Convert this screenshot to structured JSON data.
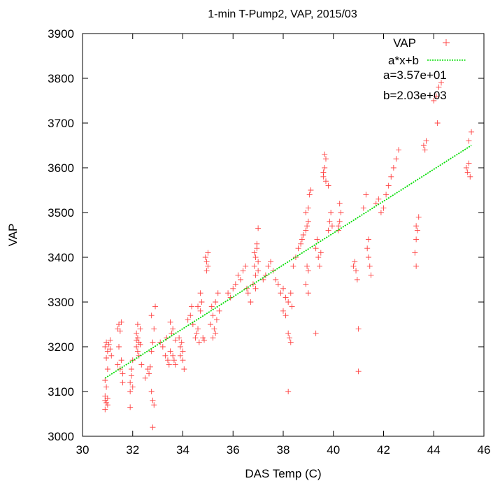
{
  "chart_data": {
    "type": "scatter",
    "title": "1-min T-Pump2, VAP, 2015/03",
    "xlabel": "DAS Temp (C)",
    "ylabel": "VAP",
    "xlim": [
      30,
      46
    ],
    "ylim": [
      3000,
      3900
    ],
    "xticks": [
      30,
      32,
      34,
      36,
      38,
      40,
      42,
      44,
      46
    ],
    "yticks": [
      3000,
      3100,
      3200,
      3300,
      3400,
      3500,
      3600,
      3700,
      3800,
      3900
    ],
    "grid": false,
    "legend_position": "top-right",
    "colors": {
      "scatter": "#ff0000",
      "fit": "#00dd00"
    },
    "series": [
      {
        "name": "VAP",
        "kind": "scatter",
        "points": [
          [
            30.9,
            3080
          ],
          [
            30.9,
            3090
          ],
          [
            30.95,
            3075
          ],
          [
            31.0,
            3085
          ],
          [
            30.9,
            3060
          ],
          [
            31.0,
            3070
          ],
          [
            30.9,
            3200
          ],
          [
            30.95,
            3210
          ],
          [
            31.0,
            3190
          ],
          [
            31.05,
            3205
          ],
          [
            31.1,
            3195
          ],
          [
            30.95,
            3175
          ],
          [
            31.0,
            3150
          ],
          [
            31.1,
            3215
          ],
          [
            31.15,
            3180
          ],
          [
            30.9,
            3125
          ],
          [
            30.95,
            3110
          ],
          [
            31.4,
            3240
          ],
          [
            31.45,
            3250
          ],
          [
            31.5,
            3235
          ],
          [
            31.55,
            3255
          ],
          [
            31.4,
            3160
          ],
          [
            31.5,
            3150
          ],
          [
            31.55,
            3170
          ],
          [
            31.6,
            3140
          ],
          [
            31.45,
            3200
          ],
          [
            31.6,
            3120
          ],
          [
            31.9,
            3120
          ],
          [
            31.95,
            3135
          ],
          [
            32.0,
            3110
          ],
          [
            31.9,
            3100
          ],
          [
            31.95,
            3150
          ],
          [
            32.0,
            3170
          ],
          [
            31.9,
            3065
          ],
          [
            32.15,
            3230
          ],
          [
            32.2,
            3220
          ],
          [
            32.25,
            3210
          ],
          [
            32.15,
            3200
          ],
          [
            32.2,
            3190
          ],
          [
            32.25,
            3180
          ],
          [
            32.3,
            3240
          ],
          [
            32.2,
            3250
          ],
          [
            32.15,
            3215
          ],
          [
            32.3,
            3205
          ],
          [
            32.35,
            3160
          ],
          [
            32.5,
            3130
          ],
          [
            32.6,
            3150
          ],
          [
            32.65,
            3140
          ],
          [
            32.7,
            3155
          ],
          [
            32.75,
            3100
          ],
          [
            32.8,
            3080
          ],
          [
            32.85,
            3070
          ],
          [
            32.8,
            3210
          ],
          [
            32.75,
            3190
          ],
          [
            32.8,
            3020
          ],
          [
            32.85,
            3240
          ],
          [
            32.9,
            3290
          ],
          [
            32.75,
            3270
          ],
          [
            33.1,
            3210
          ],
          [
            33.2,
            3200
          ],
          [
            33.3,
            3180
          ],
          [
            33.35,
            3220
          ],
          [
            33.4,
            3170
          ],
          [
            33.45,
            3160
          ],
          [
            33.5,
            3190
          ],
          [
            33.55,
            3230
          ],
          [
            33.6,
            3180
          ],
          [
            33.65,
            3170
          ],
          [
            33.7,
            3160
          ],
          [
            33.6,
            3240
          ],
          [
            33.7,
            3215
          ],
          [
            33.5,
            3255
          ],
          [
            33.9,
            3200
          ],
          [
            33.95,
            3210
          ],
          [
            34.0,
            3190
          ],
          [
            33.9,
            3180
          ],
          [
            34.0,
            3170
          ],
          [
            33.85,
            3220
          ],
          [
            34.05,
            3150
          ],
          [
            34.2,
            3260
          ],
          [
            34.3,
            3270
          ],
          [
            34.35,
            3290
          ],
          [
            34.4,
            3250
          ],
          [
            34.5,
            3220
          ],
          [
            34.55,
            3230
          ],
          [
            34.6,
            3240
          ],
          [
            34.65,
            3210
          ],
          [
            34.7,
            3280
          ],
          [
            34.75,
            3300
          ],
          [
            34.8,
            3220
          ],
          [
            34.85,
            3215
          ],
          [
            34.6,
            3290
          ],
          [
            34.7,
            3320
          ],
          [
            34.9,
            3400
          ],
          [
            34.95,
            3390
          ],
          [
            35.0,
            3380
          ],
          [
            34.95,
            3370
          ],
          [
            35.0,
            3410
          ],
          [
            35.1,
            3250
          ],
          [
            35.2,
            3270
          ],
          [
            35.25,
            3240
          ],
          [
            35.3,
            3230
          ],
          [
            35.2,
            3220
          ],
          [
            35.35,
            3260
          ],
          [
            35.15,
            3290
          ],
          [
            35.3,
            3300
          ],
          [
            35.4,
            3320
          ],
          [
            35.45,
            3280
          ],
          [
            35.8,
            3320
          ],
          [
            35.9,
            3310
          ],
          [
            36.0,
            3330
          ],
          [
            36.1,
            3340
          ],
          [
            36.2,
            3360
          ],
          [
            36.3,
            3350
          ],
          [
            36.4,
            3370
          ],
          [
            36.5,
            3380
          ],
          [
            36.55,
            3330
          ],
          [
            36.6,
            3320
          ],
          [
            36.7,
            3300
          ],
          [
            36.8,
            3340
          ],
          [
            36.85,
            3380
          ],
          [
            36.9,
            3400
          ],
          [
            36.95,
            3420
          ],
          [
            37.0,
            3390
          ],
          [
            36.9,
            3360
          ],
          [
            37.0,
            3370
          ],
          [
            36.85,
            3410
          ],
          [
            36.95,
            3430
          ],
          [
            37.0,
            3465
          ],
          [
            36.9,
            3330
          ],
          [
            37.2,
            3350
          ],
          [
            37.3,
            3360
          ],
          [
            37.4,
            3380
          ],
          [
            37.5,
            3390
          ],
          [
            37.6,
            3370
          ],
          [
            37.7,
            3350
          ],
          [
            37.8,
            3340
          ],
          [
            37.9,
            3320
          ],
          [
            38.0,
            3330
          ],
          [
            38.1,
            3310
          ],
          [
            38.2,
            3300
          ],
          [
            38.3,
            3320
          ],
          [
            38.35,
            3290
          ],
          [
            38.0,
            3280
          ],
          [
            38.1,
            3270
          ],
          [
            38.2,
            3230
          ],
          [
            38.3,
            3210
          ],
          [
            38.25,
            3220
          ],
          [
            38.2,
            3100
          ],
          [
            38.4,
            3380
          ],
          [
            38.5,
            3400
          ],
          [
            38.6,
            3420
          ],
          [
            38.7,
            3430
          ],
          [
            38.75,
            3440
          ],
          [
            38.8,
            3450
          ],
          [
            38.9,
            3460
          ],
          [
            38.95,
            3470
          ],
          [
            39.0,
            3480
          ],
          [
            38.9,
            3500
          ],
          [
            39.0,
            3510
          ],
          [
            39.05,
            3540
          ],
          [
            39.1,
            3550
          ],
          [
            38.95,
            3380
          ],
          [
            39.0,
            3370
          ],
          [
            38.9,
            3340
          ],
          [
            39.0,
            3320
          ],
          [
            39.3,
            3420
          ],
          [
            39.35,
            3440
          ],
          [
            39.4,
            3400
          ],
          [
            39.45,
            3380
          ],
          [
            39.3,
            3230
          ],
          [
            39.5,
            3410
          ],
          [
            39.6,
            3590
          ],
          [
            39.65,
            3600
          ],
          [
            39.7,
            3620
          ],
          [
            39.6,
            3580
          ],
          [
            39.7,
            3570
          ],
          [
            39.65,
            3630
          ],
          [
            39.8,
            3460
          ],
          [
            39.85,
            3480
          ],
          [
            39.9,
            3500
          ],
          [
            39.95,
            3470
          ],
          [
            39.8,
            3560
          ],
          [
            40.2,
            3470
          ],
          [
            40.25,
            3480
          ],
          [
            40.3,
            3500
          ],
          [
            40.25,
            3520
          ],
          [
            40.2,
            3460
          ],
          [
            40.8,
            3380
          ],
          [
            40.85,
            3390
          ],
          [
            40.9,
            3370
          ],
          [
            40.95,
            3350
          ],
          [
            41.0,
            3240
          ],
          [
            41.0,
            3145
          ],
          [
            41.2,
            3510
          ],
          [
            41.3,
            3540
          ],
          [
            41.35,
            3420
          ],
          [
            41.4,
            3400
          ],
          [
            41.45,
            3380
          ],
          [
            41.5,
            3360
          ],
          [
            41.4,
            3440
          ],
          [
            41.7,
            3520
          ],
          [
            41.8,
            3530
          ],
          [
            41.9,
            3500
          ],
          [
            42.0,
            3510
          ],
          [
            42.1,
            3540
          ],
          [
            42.2,
            3560
          ],
          [
            42.3,
            3580
          ],
          [
            42.4,
            3600
          ],
          [
            42.5,
            3620
          ],
          [
            42.6,
            3640
          ],
          [
            43.3,
            3470
          ],
          [
            43.35,
            3460
          ],
          [
            43.3,
            3440
          ],
          [
            43.25,
            3410
          ],
          [
            43.3,
            3380
          ],
          [
            43.4,
            3490
          ],
          [
            43.6,
            3650
          ],
          [
            43.7,
            3660
          ],
          [
            43.65,
            3640
          ],
          [
            44.0,
            3750
          ],
          [
            44.1,
            3760
          ],
          [
            44.2,
            3780
          ],
          [
            44.3,
            3790
          ],
          [
            44.15,
            3700
          ],
          [
            45.3,
            3600
          ],
          [
            45.35,
            3590
          ],
          [
            45.4,
            3610
          ],
          [
            45.45,
            3580
          ],
          [
            45.5,
            3680
          ],
          [
            45.4,
            3660
          ]
        ]
      },
      {
        "name": "a*x+b",
        "kind": "line",
        "x": [
          30.9,
          45.5
        ],
        "y": [
          3130,
          3650
        ]
      }
    ],
    "annotations": [
      "a=3.57e+01",
      "b=2.03e+03"
    ]
  }
}
